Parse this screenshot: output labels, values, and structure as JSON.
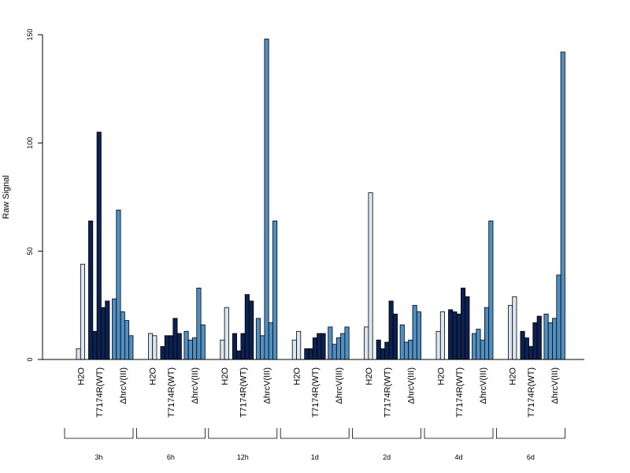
{
  "chart_data": {
    "type": "bar",
    "title": "",
    "xlabel": "",
    "ylabel": "Raw Signal",
    "ylim": [
      0,
      150
    ],
    "yticks": [
      0,
      50,
      100,
      150
    ],
    "grid": false,
    "timepoints": [
      "3h",
      "6h",
      "12h",
      "1d",
      "2d",
      "4d",
      "6d"
    ],
    "treatments": [
      {
        "label": "H2O",
        "color": "#dbe6f3"
      },
      {
        "label": "T7174R(WT)",
        "color": "#0b2150"
      },
      {
        "label": "ΔhrcV(III)",
        "color": "#4f8fc1"
      }
    ],
    "values": [
      [
        [
          5,
          44
        ],
        [
          64,
          13,
          105,
          24,
          27
        ],
        [
          28,
          69,
          22,
          18,
          11
        ]
      ],
      [
        [
          12,
          11
        ],
        [
          6,
          11,
          11,
          19,
          12
        ],
        [
          13,
          9,
          10,
          33,
          16
        ]
      ],
      [
        [
          9,
          24
        ],
        [
          12,
          4,
          12,
          30,
          27
        ],
        [
          19,
          11,
          148,
          17,
          64
        ]
      ],
      [
        [
          9,
          13
        ],
        [
          5,
          5,
          10,
          12,
          12
        ],
        [
          15,
          7,
          10,
          12,
          15
        ]
      ],
      [
        [
          15,
          77
        ],
        [
          9,
          5,
          8,
          27,
          21
        ],
        [
          16,
          8,
          9,
          25,
          22
        ]
      ],
      [
        [
          13,
          22
        ],
        [
          23,
          22,
          21,
          33,
          29
        ],
        [
          12,
          14,
          9,
          24,
          64
        ]
      ],
      [
        [
          25,
          29
        ],
        [
          13,
          10,
          6,
          17,
          20
        ],
        [
          21,
          17,
          19,
          39,
          142
        ]
      ]
    ]
  }
}
